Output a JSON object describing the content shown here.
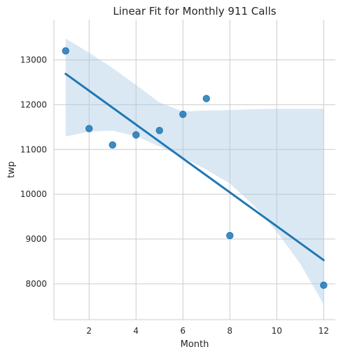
{
  "chart_data": {
    "type": "scatter",
    "title": "Linear Fit for Monthly 911 Calls",
    "xlabel": "Month",
    "ylabel": "twp",
    "xlim": [
      0.5,
      12.5
    ],
    "ylim": [
      7200,
      13900
    ],
    "xticks": [
      2,
      4,
      6,
      8,
      10,
      12
    ],
    "yticks": [
      8000,
      9000,
      10000,
      11000,
      12000,
      13000
    ],
    "grid": true,
    "series": [
      {
        "x": [
          1,
          2,
          3,
          4,
          5,
          6,
          7,
          8,
          12
        ],
        "y": [
          13203,
          11467,
          11101,
          11326,
          11423,
          11786,
          12137,
          9078,
          7969
        ],
        "color": "#1f77b4"
      }
    ],
    "fit": {
      "x": [
        1,
        12
      ],
      "y": [
        12690,
        8530
      ],
      "color": "#1f77b4"
    },
    "confidence_band": {
      "x": [
        1,
        2,
        3,
        4,
        5,
        6,
        7,
        8,
        9,
        10,
        11,
        12
      ],
      "upper": [
        13480,
        13160,
        12820,
        12440,
        12050,
        11850,
        11870,
        11880,
        11900,
        11910,
        11910,
        11910
      ],
      "lower": [
        11290,
        11400,
        11420,
        11300,
        11070,
        10820,
        10550,
        10240,
        9760,
        9160,
        8450,
        7540
      ],
      "color": "#a8c8e4"
    }
  }
}
